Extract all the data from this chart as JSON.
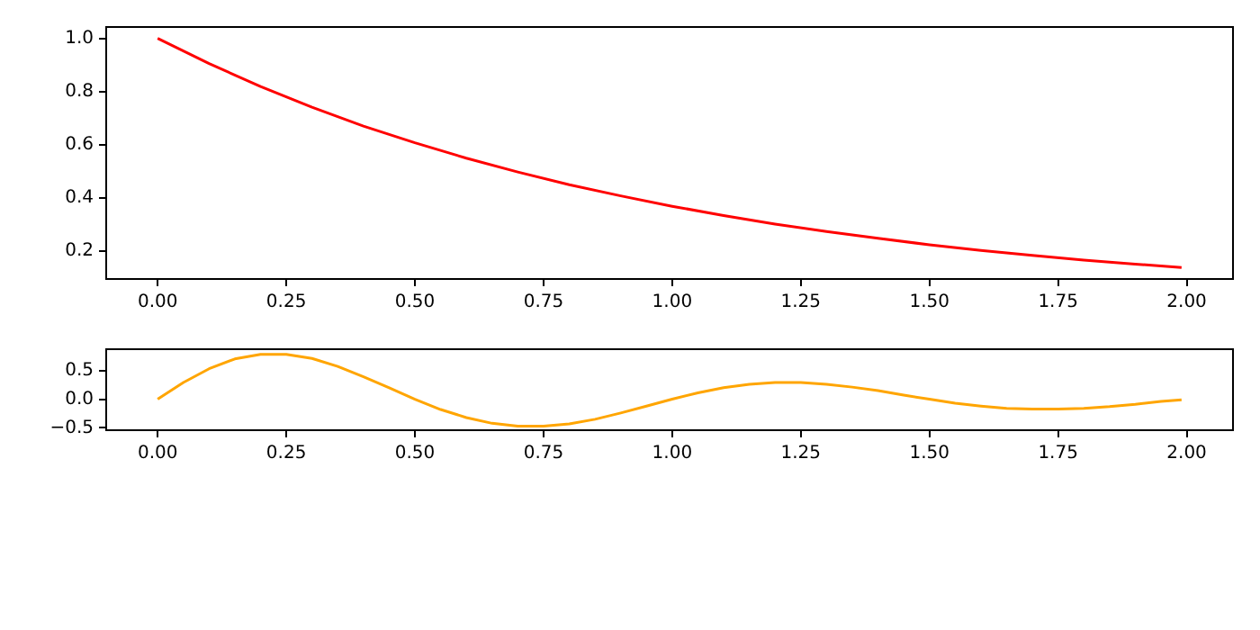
{
  "chart_data": [
    {
      "type": "line",
      "x": [
        0,
        0.1,
        0.2,
        0.3,
        0.4,
        0.5,
        0.6,
        0.7,
        0.8,
        0.9,
        1.0,
        1.1,
        1.2,
        1.3,
        1.4,
        1.5,
        1.6,
        1.7,
        1.8,
        1.9,
        1.99
      ],
      "series": [
        {
          "color": "#ff0000",
          "values": [
            1.0,
            0.905,
            0.819,
            0.741,
            0.67,
            0.607,
            0.549,
            0.497,
            0.449,
            0.407,
            0.368,
            0.333,
            0.301,
            0.273,
            0.247,
            0.223,
            0.202,
            0.183,
            0.165,
            0.15,
            0.137
          ]
        }
      ],
      "xlim": [
        -0.1,
        2.09
      ],
      "ylim": [
        0.094,
        1.043
      ],
      "xticks": [
        {
          "value": 0,
          "label": "0.00"
        },
        {
          "value": 0.25,
          "label": "0.25"
        },
        {
          "value": 0.5,
          "label": "0.50"
        },
        {
          "value": 0.75,
          "label": "0.75"
        },
        {
          "value": 1,
          "label": "1.00"
        },
        {
          "value": 1.25,
          "label": "1.25"
        },
        {
          "value": 1.5,
          "label": "1.50"
        },
        {
          "value": 1.75,
          "label": "1.75"
        },
        {
          "value": 2,
          "label": "2.00"
        }
      ],
      "yticks": [
        0.2,
        0.4,
        0.6,
        0.8,
        {
          "value": 1,
          "label": "1.0"
        }
      ],
      "grid": false,
      "legend": false,
      "marker": "none",
      "line_style": "solid"
    },
    {
      "type": "line",
      "x": [
        0,
        0.05,
        0.1,
        0.15,
        0.2,
        0.25,
        0.3,
        0.35,
        0.4,
        0.45,
        0.5,
        0.55,
        0.6,
        0.65,
        0.7,
        0.75,
        0.8,
        0.85,
        0.9,
        0.95,
        1.0,
        1.05,
        1.1,
        1.15,
        1.2,
        1.25,
        1.3,
        1.35,
        1.4,
        1.45,
        1.5,
        1.55,
        1.6,
        1.65,
        1.7,
        1.75,
        1.8,
        1.85,
        1.9,
        1.95,
        1.99
      ],
      "series": [
        {
          "color": "#ffa500",
          "values": [
            0,
            0.29,
            0.53,
            0.7,
            0.78,
            0.78,
            0.71,
            0.57,
            0.39,
            0.2,
            0,
            -0.18,
            -0.32,
            -0.42,
            -0.47,
            -0.47,
            -0.43,
            -0.35,
            -0.24,
            -0.12,
            0,
            0.11,
            0.2,
            0.26,
            0.29,
            0.29,
            0.26,
            0.21,
            0.15,
            0.07,
            0,
            -0.07,
            -0.12,
            -0.16,
            -0.17,
            -0.17,
            -0.16,
            -0.13,
            -0.09,
            -0.04,
            -0.01
          ]
        }
      ],
      "xlim": [
        -0.1,
        2.09
      ],
      "ylim": [
        -0.54,
        0.87
      ],
      "xticks": [
        {
          "value": 0,
          "label": "0.00"
        },
        {
          "value": 0.25,
          "label": "0.25"
        },
        {
          "value": 0.5,
          "label": "0.50"
        },
        {
          "value": 0.75,
          "label": "0.75"
        },
        {
          "value": 1,
          "label": "1.00"
        },
        {
          "value": 1.25,
          "label": "1.25"
        },
        {
          "value": 1.5,
          "label": "1.50"
        },
        {
          "value": 1.75,
          "label": "1.75"
        },
        {
          "value": 2,
          "label": "2.00"
        }
      ],
      "yticks": [
        {
          "value": -0.5,
          "label": "−0.5"
        },
        {
          "value": 0,
          "label": "0.0"
        },
        {
          "value": 0.5,
          "label": "0.5"
        }
      ],
      "grid": false,
      "legend": false,
      "marker": "none",
      "line_style": "solid"
    }
  ]
}
